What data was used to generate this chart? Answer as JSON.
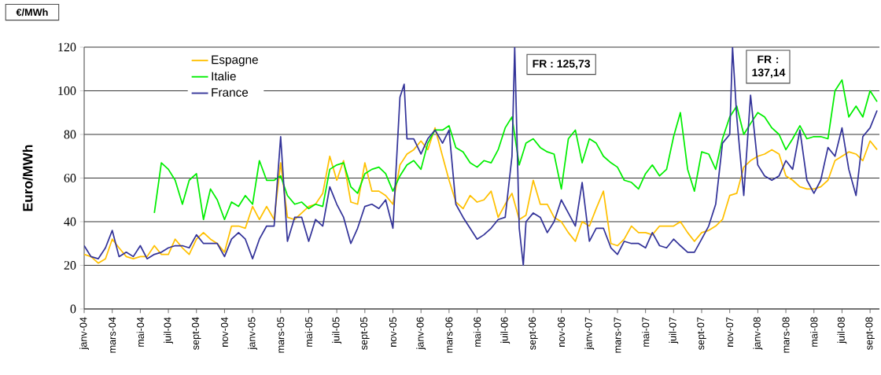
{
  "chart_data": {
    "type": "line",
    "ylabel": "Euro/MWh",
    "annotations": [
      "€/MWh",
      "FR : 125,73",
      "FR : 137,14"
    ],
    "x": [
      "2004-01",
      "2004-01-16",
      "2004-02",
      "2004-02-16",
      "2004-03",
      "2004-03-16",
      "2004-04",
      "2004-04-16",
      "2004-05",
      "2004-05-16",
      "2004-06",
      "2004-06-16",
      "2004-07",
      "2004-07-16",
      "2004-08",
      "2004-08-16",
      "2004-09",
      "2004-09-16",
      "2004-10",
      "2004-10-16",
      "2004-11",
      "2004-11-16",
      "2004-12",
      "2004-12-16",
      "2005-01",
      "2005-01-16",
      "2005-02",
      "2005-02-16",
      "2005-03",
      "2005-03-16",
      "2005-04",
      "2005-04-16",
      "2005-05",
      "2005-05-16",
      "2005-06",
      "2005-06-16",
      "2005-07",
      "2005-07-16",
      "2005-08",
      "2005-08-16",
      "2005-09",
      "2005-09-16",
      "2005-10",
      "2005-10-16",
      "2005-11",
      "2005-11-16",
      "2005-12",
      "2005-12-16",
      "2006-01",
      "2006-01-16",
      "2006-02",
      "2006-02-16",
      "2006-03",
      "2006-03-16",
      "2006-04",
      "2006-04-16",
      "2006-05",
      "2006-05-16",
      "2006-06",
      "2006-06-16",
      "2006-07",
      "2006-07-16",
      "2006-08",
      "2006-08-16",
      "2006-09",
      "2006-09-16",
      "2006-10",
      "2006-10-16",
      "2006-11",
      "2006-11-16",
      "2006-12",
      "2006-12-16",
      "2007-01",
      "2007-01-16",
      "2007-02",
      "2007-02-16",
      "2007-03",
      "2007-03-16",
      "2007-04",
      "2007-04-16",
      "2007-05",
      "2007-05-16",
      "2007-06",
      "2007-06-16",
      "2007-07",
      "2007-07-16",
      "2007-08",
      "2007-08-16",
      "2007-09",
      "2007-09-16",
      "2007-10",
      "2007-10-16",
      "2007-11",
      "2007-11-16",
      "2007-12",
      "2007-12-16",
      "2008-01",
      "2008-01-16",
      "2008-02",
      "2008-02-16",
      "2008-03",
      "2008-03-16",
      "2008-04",
      "2008-04-16",
      "2008-05",
      "2008-05-16",
      "2008-06",
      "2008-06-16",
      "2008-07",
      "2008-07-16",
      "2008-08",
      "2008-08-16",
      "2008-09",
      "2008-09-16"
    ],
    "series": [
      {
        "name": "Espagne",
        "color": "#ffc000",
        "values": [
          25,
          24,
          21,
          23,
          32,
          28,
          24,
          23,
          24,
          24,
          29,
          25,
          25,
          32,
          28,
          25,
          32,
          35,
          32,
          30,
          26,
          38,
          38,
          37,
          47,
          41,
          47,
          41,
          67,
          42,
          41,
          44,
          47,
          48,
          53,
          70,
          59,
          68,
          49,
          48,
          67,
          54,
          54,
          52,
          48,
          66,
          71,
          73,
          77,
          73,
          83,
          70,
          59,
          49,
          46,
          52,
          49,
          50,
          54,
          42,
          48,
          53,
          41,
          43,
          59,
          48,
          48,
          42,
          40,
          35,
          31,
          40,
          38,
          46,
          54,
          30,
          29,
          32,
          38,
          35,
          35,
          34,
          38,
          38,
          38,
          40,
          35,
          31,
          35,
          36,
          38,
          41,
          52,
          53,
          65,
          68,
          70,
          71,
          73,
          71,
          61,
          59,
          56,
          55,
          55,
          56,
          59,
          68,
          70,
          72,
          71,
          68,
          77,
          73
        ]
      },
      {
        "name": "Italie",
        "color": "#00ee00",
        "values": [
          null,
          null,
          null,
          null,
          null,
          null,
          null,
          null,
          null,
          null,
          44,
          67,
          64,
          59,
          48,
          59,
          62,
          41,
          55,
          50,
          41,
          49,
          47,
          52,
          48,
          68,
          59,
          59,
          61,
          52,
          48,
          49,
          46,
          48,
          47,
          64,
          66,
          67,
          56,
          53,
          62,
          64,
          65,
          62,
          54,
          61,
          66,
          68,
          64,
          76,
          82,
          82,
          84,
          74,
          72,
          67,
          65,
          68,
          67,
          73,
          83,
          88,
          66,
          76,
          78,
          74,
          72,
          71,
          55,
          78,
          82,
          67,
          78,
          76,
          70,
          67,
          65,
          59,
          58,
          55,
          62,
          66,
          61,
          64,
          79,
          90,
          64,
          54,
          72,
          71,
          64,
          78,
          88,
          93,
          80,
          85,
          90,
          88,
          83,
          80,
          73,
          78,
          84,
          78,
          79,
          79,
          78,
          100,
          105,
          88,
          93,
          88,
          100,
          95
        ]
      },
      {
        "name": "France",
        "color": "#333399",
        "x": [
          "2004-01",
          "2004-01-16",
          "2004-02",
          "2004-02-16",
          "2004-03",
          "2004-03-16",
          "2004-04",
          "2004-04-16",
          "2004-05",
          "2004-05-16",
          "2004-06",
          "2004-06-16",
          "2004-07",
          "2004-07-16",
          "2004-08",
          "2004-08-16",
          "2004-09",
          "2004-09-16",
          "2004-10",
          "2004-10-16",
          "2004-11",
          "2004-11-16",
          "2004-12",
          "2004-12-16",
          "2005-01",
          "2005-01-16",
          "2005-02",
          "2005-02-16",
          "2005-03",
          "2005-03-16",
          "2005-04",
          "2005-04-16",
          "2005-05",
          "2005-05-16",
          "2005-06",
          "2005-06-16",
          "2005-07",
          "2005-07-16",
          "2005-08",
          "2005-08-16",
          "2005-09",
          "2005-09-16",
          "2005-10",
          "2005-10-16",
          "2005-11",
          "2005-11-16",
          "2005-11-25",
          "2005-12",
          "2005-12-16",
          "2006-01",
          "2006-01-16",
          "2006-02",
          "2006-02-16",
          "2006-03",
          "2006-03-16",
          "2006-04",
          "2006-04-16",
          "2006-05",
          "2006-05-16",
          "2006-06",
          "2006-06-16",
          "2006-07",
          "2006-07-16",
          "2006-07-22",
          "2006-08",
          "2006-08-10",
          "2006-08-16",
          "2006-09",
          "2006-09-16",
          "2006-10",
          "2006-10-16",
          "2006-11",
          "2006-11-16",
          "2006-12",
          "2006-12-16",
          "2007-01",
          "2007-01-16",
          "2007-02",
          "2007-02-16",
          "2007-03",
          "2007-03-16",
          "2007-04",
          "2007-04-16",
          "2007-05",
          "2007-05-16",
          "2007-06",
          "2007-06-16",
          "2007-07",
          "2007-07-16",
          "2007-08",
          "2007-08-16",
          "2007-09",
          "2007-09-16",
          "2007-10",
          "2007-10-16",
          "2007-11",
          "2007-11-07",
          "2007-11-16",
          "2007-12",
          "2007-12-16",
          "2008-01",
          "2008-01-16",
          "2008-02",
          "2008-02-16",
          "2008-03",
          "2008-03-16",
          "2008-04",
          "2008-04-16",
          "2008-05",
          "2008-05-16",
          "2008-06",
          "2008-06-16",
          "2008-07",
          "2008-07-16",
          "2008-08",
          "2008-08-16",
          "2008-09",
          "2008-09-16"
        ],
        "values": [
          29,
          24,
          23,
          28,
          36,
          24,
          26,
          24,
          29,
          23,
          25,
          26,
          28,
          29,
          29,
          28,
          34,
          30,
          30,
          30,
          24,
          32,
          35,
          32,
          23,
          32,
          38,
          38,
          79,
          31,
          42,
          42,
          31,
          41,
          38,
          56,
          48,
          42,
          30,
          37,
          47,
          48,
          46,
          50,
          37,
          97,
          103,
          78,
          78,
          71,
          78,
          82,
          76,
          82,
          48,
          42,
          37,
          32,
          34,
          37,
          41,
          42,
          70,
          120,
          37,
          20,
          40,
          44,
          42,
          35,
          40,
          50,
          44,
          38,
          58,
          31,
          37,
          37,
          28,
          25,
          31,
          30,
          30,
          28,
          35,
          29,
          28,
          32,
          29,
          26,
          26,
          32,
          38,
          48,
          76,
          80,
          120,
          88,
          52,
          98,
          66,
          61,
          59,
          61,
          68,
          64,
          82,
          59,
          53,
          59,
          74,
          70,
          83,
          64,
          52,
          79,
          83,
          91
        ]
      }
    ],
    "xlim": [
      "2004-01",
      "2008-09-21"
    ],
    "xticks": [
      {
        "value": "2004-01",
        "label": "janv-04"
      },
      {
        "value": "2004-03",
        "label": "mars-04"
      },
      {
        "value": "2004-05",
        "label": "mai-04"
      },
      {
        "value": "2004-07",
        "label": "juil-04"
      },
      {
        "value": "2004-09",
        "label": "sept-04"
      },
      {
        "value": "2004-11",
        "label": "nov-04"
      },
      {
        "value": "2005-01",
        "label": "janv-05"
      },
      {
        "value": "2005-03",
        "label": "mars-05"
      },
      {
        "value": "2005-05",
        "label": "mai-05"
      },
      {
        "value": "2005-07",
        "label": "juil-05"
      },
      {
        "value": "2005-09",
        "label": "sept-05"
      },
      {
        "value": "2005-11",
        "label": "nov-05"
      },
      {
        "value": "2006-01",
        "label": "janv-06"
      },
      {
        "value": "2006-03",
        "label": "mars-06"
      },
      {
        "value": "2006-05",
        "label": "mai-06"
      },
      {
        "value": "2006-07",
        "label": "juil-06"
      },
      {
        "value": "2006-09",
        "label": "sept-06"
      },
      {
        "value": "2006-11",
        "label": "nov-06"
      },
      {
        "value": "2007-01",
        "label": "janv-07"
      },
      {
        "value": "2007-03",
        "label": "mars-07"
      },
      {
        "value": "2007-05",
        "label": "mai-07"
      },
      {
        "value": "2007-07",
        "label": "juil-07"
      },
      {
        "value": "2007-09",
        "label": "sept-07"
      },
      {
        "value": "2007-11",
        "label": "nov-07"
      },
      {
        "value": "2008-01",
        "label": "janv-08"
      },
      {
        "value": "2008-03",
        "label": "mars-08"
      },
      {
        "value": "2008-05",
        "label": "mai-08"
      },
      {
        "value": "2008-07",
        "label": "juil-08"
      },
      {
        "value": "2008-09",
        "label": "sept-08"
      }
    ],
    "ylim": [
      0,
      120
    ],
    "yticks": [
      0,
      20,
      40,
      60,
      80,
      100,
      120
    ],
    "grid": "y",
    "legend": "top left",
    "line_style": "solid",
    "marker": "none"
  }
}
